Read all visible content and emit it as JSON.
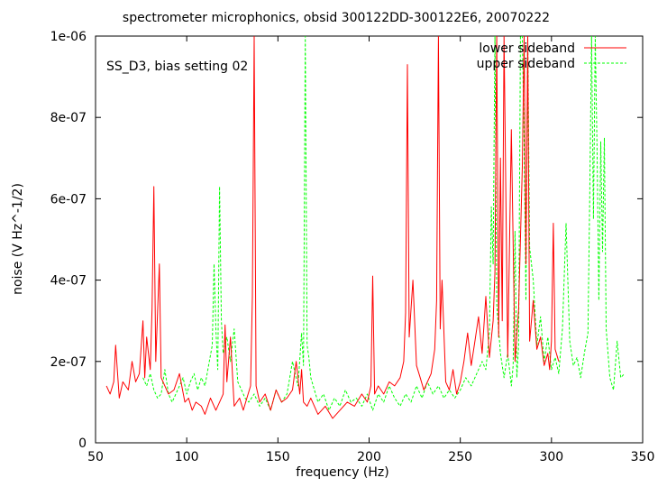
{
  "chart_data": {
    "type": "line",
    "title": "spectrometer microphonics, obsid 300122DD-300122E6, 20070222",
    "annotation": "SS_D3, bias setting 02",
    "xlabel": "frequency (Hz)",
    "ylabel": "noise (V Hz^-1/2)",
    "xlim": [
      50,
      350
    ],
    "ylim": [
      0,
      1e-06
    ],
    "xticks": [
      50,
      100,
      150,
      200,
      250,
      300,
      350
    ],
    "yticks": [
      0,
      2e-07,
      4e-07,
      6e-07,
      8e-07,
      1e-06
    ],
    "xtick_labels": [
      "50",
      "100",
      "150",
      "200",
      "250",
      "300",
      "350"
    ],
    "ytick_labels": [
      "0",
      "2e-07",
      "4e-07",
      "6e-07",
      "8e-07",
      "1e-06"
    ],
    "legend_position": "top-right",
    "grid": false,
    "series": [
      {
        "name": "lower sideband",
        "color": "#ff0000",
        "style": "solid",
        "x": [
          56,
          58,
          60,
          61,
          63,
          65,
          68,
          70,
          72,
          74,
          76,
          77,
          78,
          80,
          81,
          82,
          83,
          84,
          85,
          86,
          88,
          90,
          93,
          96,
          99,
          101,
          103,
          105,
          108,
          110,
          113,
          116,
          118,
          120,
          121,
          122,
          124,
          126,
          129,
          131,
          133,
          135,
          136,
          137,
          138,
          140,
          143,
          146,
          149,
          152,
          155,
          158,
          160,
          162,
          163,
          164,
          166,
          168,
          172,
          176,
          180,
          184,
          188,
          192,
          196,
          199,
          201,
          202,
          203,
          205,
          208,
          211,
          214,
          217,
          219,
          220,
          221,
          222,
          224,
          226,
          228,
          230,
          232,
          234,
          236,
          237,
          238,
          239,
          240,
          242,
          244,
          246,
          248,
          250,
          252,
          254,
          256,
          258,
          260,
          262,
          264,
          266,
          268,
          269,
          270,
          271,
          272,
          273,
          274,
          276,
          278,
          280,
          282,
          284,
          285,
          286,
          287,
          288,
          290,
          292,
          294,
          296,
          298,
          299,
          300,
          301,
          302,
          304
        ],
        "y": [
          1.4e-07,
          1.2e-07,
          1.5e-07,
          2.4e-07,
          1.1e-07,
          1.5e-07,
          1.3e-07,
          2e-07,
          1.5e-07,
          1.7e-07,
          3e-07,
          1.6e-07,
          2.6e-07,
          1.8e-07,
          3.3e-07,
          6.3e-07,
          2e-07,
          3.2e-07,
          4.4e-07,
          1.6e-07,
          1.4e-07,
          1.2e-07,
          1.3e-07,
          1.7e-07,
          1e-07,
          1.1e-07,
          8e-08,
          1e-07,
          9e-08,
          7e-08,
          1.1e-07,
          8e-08,
          1e-07,
          1.2e-07,
          2.9e-07,
          1.5e-07,
          2.6e-07,
          9e-08,
          1.1e-07,
          8e-08,
          1.1e-07,
          1.4e-07,
          3.6e-07,
          1e-06,
          1.4e-07,
          1e-07,
          1.2e-07,
          8e-08,
          1.3e-07,
          1e-07,
          1.1e-07,
          1.3e-07,
          2e-07,
          1.2e-07,
          1.8e-07,
          1e-07,
          9e-08,
          1.1e-07,
          7e-08,
          9e-08,
          6e-08,
          8e-08,
          1e-07,
          9e-08,
          1.2e-07,
          1e-07,
          1.4e-07,
          4.1e-07,
          1.2e-07,
          1.4e-07,
          1.2e-07,
          1.5e-07,
          1.4e-07,
          1.6e-07,
          2e-07,
          3.2e-07,
          9.3e-07,
          2.6e-07,
          4e-07,
          1.9e-07,
          1.6e-07,
          1.3e-07,
          1.5e-07,
          1.7e-07,
          2.3e-07,
          3.5e-07,
          1e-06,
          2.8e-07,
          4e-07,
          1.5e-07,
          1.3e-07,
          1.8e-07,
          1.2e-07,
          1.5e-07,
          2e-07,
          2.7e-07,
          1.9e-07,
          2.5e-07,
          3.1e-07,
          2.2e-07,
          3.6e-07,
          2.1e-07,
          3e-07,
          4.2e-07,
          1e-06,
          2.6e-07,
          7e-07,
          3e-07,
          1e-06,
          2.1e-07,
          7.7e-07,
          2e-07,
          3.3e-07,
          6.8e-07,
          1e-06,
          4.4e-07,
          1e-06,
          2.5e-07,
          3.5e-07,
          2.3e-07,
          2.6e-07,
          1.9e-07,
          2.2e-07,
          1.8e-07,
          2.5e-07,
          5.4e-07,
          2.3e-07,
          2e-07
        ]
      },
      {
        "name": "upper sideband",
        "color": "#00ff00",
        "style": "dashed",
        "x": [
          76,
          78,
          80,
          82,
          84,
          86,
          88,
          90,
          92,
          95,
          98,
          100,
          102,
          104,
          106,
          108,
          110,
          112,
          114,
          115,
          116,
          117,
          118,
          119,
          120,
          122,
          124,
          126,
          128,
          130,
          132,
          134,
          137,
          140,
          143,
          146,
          149,
          152,
          155,
          158,
          161,
          163,
          164,
          165,
          166,
          167,
          168,
          170,
          172,
          175,
          178,
          181,
          184,
          187,
          190,
          193,
          196,
          199,
          202,
          205,
          208,
          211,
          214,
          217,
          220,
          223,
          226,
          229,
          232,
          235,
          238,
          241,
          244,
          247,
          250,
          253,
          256,
          259,
          262,
          264,
          266,
          267,
          268,
          269,
          270,
          272,
          274,
          276,
          278,
          279,
          280,
          281,
          282,
          283,
          284,
          285,
          286,
          287,
          288,
          290,
          292,
          294,
          296,
          298,
          300,
          302,
          304,
          306,
          308,
          310,
          312,
          314,
          316,
          318,
          320,
          321,
          322,
          323,
          324,
          325,
          326,
          327,
          328,
          329,
          330,
          332,
          334,
          336,
          338,
          340
        ],
        "y": [
          1.6e-07,
          1.4e-07,
          1.7e-07,
          1.3e-07,
          1.1e-07,
          1.2e-07,
          1.8e-07,
          1.2e-07,
          1e-07,
          1.3e-07,
          1.6e-07,
          1.2e-07,
          1.5e-07,
          1.7e-07,
          1.3e-07,
          1.6e-07,
          1.4e-07,
          1.9e-07,
          2.4e-07,
          4.4e-07,
          2.8e-07,
          1.8e-07,
          6.3e-07,
          3e-07,
          2.2e-07,
          2.6e-07,
          2e-07,
          2.8e-07,
          1.5e-07,
          1.3e-07,
          1.1e-07,
          1e-07,
          1.2e-07,
          9e-08,
          1.1e-07,
          8e-08,
          1.3e-07,
          1e-07,
          1.2e-07,
          2e-07,
          1.4e-07,
          2.7e-07,
          1.9e-07,
          1e-06,
          2.4e-07,
          2.1e-07,
          1.6e-07,
          1.3e-07,
          1e-07,
          1.2e-07,
          8e-08,
          1.1e-07,
          9e-08,
          1.3e-07,
          1e-07,
          1.1e-07,
          9e-08,
          1.2e-07,
          8e-08,
          1.2e-07,
          1e-07,
          1.4e-07,
          1.1e-07,
          9e-08,
          1.2e-07,
          1e-07,
          1.4e-07,
          1.1e-07,
          1.5e-07,
          1.2e-07,
          1.4e-07,
          1.1e-07,
          1.3e-07,
          1.1e-07,
          1.3e-07,
          1.6e-07,
          1.4e-07,
          1.7e-07,
          2e-07,
          1.8e-07,
          2.7e-07,
          5.8e-07,
          4.4e-07,
          1e-06,
          3.4e-07,
          2.2e-07,
          1.6e-07,
          2.2e-07,
          1.4e-07,
          1.9e-07,
          5.2e-07,
          1.6e-07,
          2.4e-07,
          1e-06,
          1e-06,
          7.4e-07,
          3.5e-07,
          1e-06,
          4.8e-07,
          4e-07,
          2.4e-07,
          3.1e-07,
          2e-07,
          2.6e-07,
          1.8e-07,
          2.1e-07,
          1.7e-07,
          2.8e-07,
          5.4e-07,
          2.5e-07,
          1.9e-07,
          2.1e-07,
          1.6e-07,
          2.2e-07,
          2.7e-07,
          6.1e-07,
          1e-06,
          5.5e-07,
          1e-06,
          7.2e-07,
          3.5e-07,
          7.4e-07,
          4.7e-07,
          7.5e-07,
          2.8e-07,
          1.6e-07,
          1.3e-07,
          2.5e-07,
          1.6e-07,
          1.7e-07
        ]
      }
    ]
  }
}
